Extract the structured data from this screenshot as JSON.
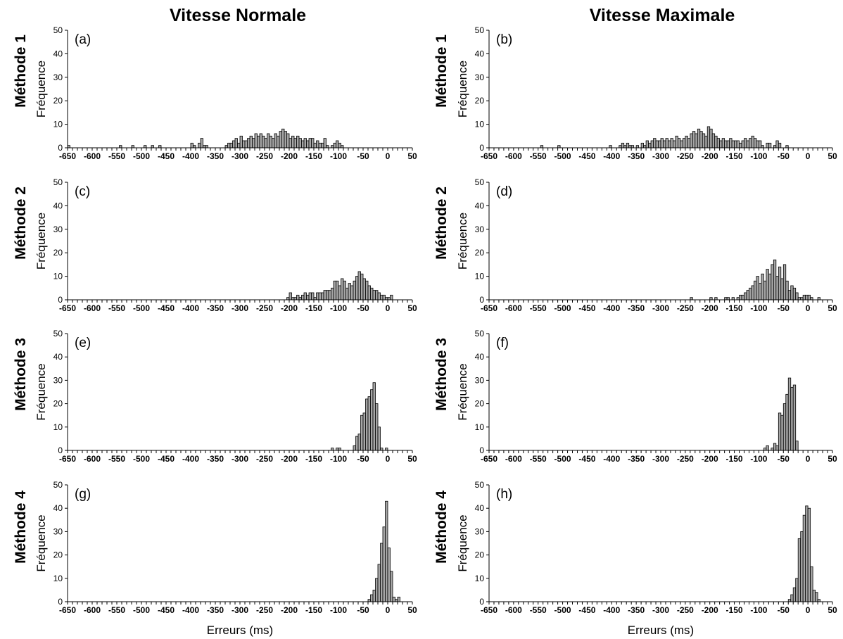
{
  "column_titles": [
    "Vitesse Normale",
    "Vitesse Maximale"
  ],
  "row_titles": [
    "Méthode 1",
    "Méthode 2",
    "Méthode 3",
    "Méthode 4"
  ],
  "chart_data": [
    {
      "type": "bar",
      "panel": "(a)",
      "ylabel": "Fréquence",
      "xlabel": "",
      "xlim": [
        -650,
        50
      ],
      "ylim": [
        0,
        50
      ],
      "bin_width": 5,
      "yticks": [
        0,
        10,
        20,
        30,
        40,
        50
      ],
      "xticks": [
        -650,
        -600,
        -550,
        -500,
        -450,
        -400,
        -350,
        -300,
        -250,
        -200,
        -150,
        -100,
        -50,
        0,
        50
      ],
      "bins": [
        [
          -650,
          1
        ],
        [
          -545,
          1
        ],
        [
          -520,
          1
        ],
        [
          -495,
          1
        ],
        [
          -480,
          1
        ],
        [
          -465,
          1
        ],
        [
          -400,
          2
        ],
        [
          -395,
          1
        ],
        [
          -385,
          2
        ],
        [
          -380,
          4
        ],
        [
          -375,
          1
        ],
        [
          -370,
          1
        ],
        [
          -330,
          1
        ],
        [
          -325,
          2
        ],
        [
          -320,
          2
        ],
        [
          -315,
          3
        ],
        [
          -310,
          4
        ],
        [
          -305,
          2
        ],
        [
          -300,
          5
        ],
        [
          -295,
          3
        ],
        [
          -290,
          3
        ],
        [
          -285,
          4
        ],
        [
          -280,
          5
        ],
        [
          -275,
          4
        ],
        [
          -270,
          6
        ],
        [
          -265,
          5
        ],
        [
          -260,
          6
        ],
        [
          -255,
          5
        ],
        [
          -250,
          4
        ],
        [
          -245,
          6
        ],
        [
          -240,
          5
        ],
        [
          -235,
          4
        ],
        [
          -230,
          6
        ],
        [
          -225,
          5
        ],
        [
          -220,
          7
        ],
        [
          -215,
          8
        ],
        [
          -210,
          7
        ],
        [
          -205,
          6
        ],
        [
          -200,
          4
        ],
        [
          -195,
          5
        ],
        [
          -190,
          4
        ],
        [
          -185,
          5
        ],
        [
          -180,
          4
        ],
        [
          -175,
          3
        ],
        [
          -170,
          4
        ],
        [
          -165,
          3
        ],
        [
          -160,
          4
        ],
        [
          -155,
          4
        ],
        [
          -150,
          2
        ],
        [
          -145,
          3
        ],
        [
          -140,
          2
        ],
        [
          -135,
          2
        ],
        [
          -130,
          4
        ],
        [
          -125,
          1
        ],
        [
          -115,
          1
        ],
        [
          -110,
          2
        ],
        [
          -105,
          3
        ],
        [
          -100,
          2
        ],
        [
          -95,
          1
        ]
      ]
    },
    {
      "type": "bar",
      "panel": "(b)",
      "ylabel": "Fréquence",
      "xlabel": "",
      "xlim": [
        -650,
        50
      ],
      "ylim": [
        0,
        50
      ],
      "bin_width": 5,
      "yticks": [
        0,
        10,
        20,
        30,
        40,
        50
      ],
      "xticks": [
        -650,
        -600,
        -550,
        -500,
        -450,
        -400,
        -350,
        -300,
        -250,
        -200,
        -150,
        -100,
        -50,
        0,
        50
      ],
      "bins": [
        [
          -545,
          1
        ],
        [
          -510,
          1
        ],
        [
          -405,
          1
        ],
        [
          -385,
          1
        ],
        [
          -380,
          2
        ],
        [
          -375,
          1
        ],
        [
          -370,
          2
        ],
        [
          -365,
          1
        ],
        [
          -360,
          1
        ],
        [
          -350,
          1
        ],
        [
          -340,
          2
        ],
        [
          -335,
          1
        ],
        [
          -330,
          3
        ],
        [
          -325,
          2
        ],
        [
          -320,
          3
        ],
        [
          -315,
          4
        ],
        [
          -310,
          3
        ],
        [
          -305,
          3
        ],
        [
          -300,
          4
        ],
        [
          -295,
          3
        ],
        [
          -290,
          4
        ],
        [
          -285,
          3
        ],
        [
          -280,
          4
        ],
        [
          -275,
          3
        ],
        [
          -270,
          5
        ],
        [
          -265,
          4
        ],
        [
          -260,
          3
        ],
        [
          -255,
          4
        ],
        [
          -250,
          5
        ],
        [
          -245,
          4
        ],
        [
          -240,
          6
        ],
        [
          -235,
          7
        ],
        [
          -230,
          6
        ],
        [
          -225,
          8
        ],
        [
          -220,
          7
        ],
        [
          -215,
          6
        ],
        [
          -210,
          5
        ],
        [
          -205,
          9
        ],
        [
          -200,
          8
        ],
        [
          -195,
          6
        ],
        [
          -190,
          5
        ],
        [
          -185,
          4
        ],
        [
          -180,
          3
        ],
        [
          -175,
          4
        ],
        [
          -170,
          3
        ],
        [
          -165,
          3
        ],
        [
          -160,
          4
        ],
        [
          -155,
          3
        ],
        [
          -150,
          3
        ],
        [
          -145,
          3
        ],
        [
          -140,
          2
        ],
        [
          -135,
          3
        ],
        [
          -130,
          4
        ],
        [
          -125,
          3
        ],
        [
          -120,
          4
        ],
        [
          -115,
          5
        ],
        [
          -110,
          4
        ],
        [
          -105,
          3
        ],
        [
          -100,
          3
        ],
        [
          -95,
          1
        ],
        [
          -85,
          2
        ],
        [
          -80,
          2
        ],
        [
          -70,
          1
        ],
        [
          -65,
          3
        ],
        [
          -60,
          2
        ],
        [
          -45,
          1
        ]
      ]
    },
    {
      "type": "bar",
      "panel": "(c)",
      "ylabel": "Fréquence",
      "xlabel": "",
      "xlim": [
        -650,
        50
      ],
      "ylim": [
        0,
        50
      ],
      "bin_width": 5,
      "yticks": [
        0,
        10,
        20,
        30,
        40,
        50
      ],
      "xticks": [
        -650,
        -600,
        -550,
        -500,
        -450,
        -400,
        -350,
        -300,
        -250,
        -200,
        -150,
        -100,
        -50,
        0,
        50
      ],
      "bins": [
        [
          -205,
          1
        ],
        [
          -200,
          3
        ],
        [
          -195,
          1
        ],
        [
          -190,
          1
        ],
        [
          -185,
          2
        ],
        [
          -180,
          1
        ],
        [
          -175,
          2
        ],
        [
          -170,
          3
        ],
        [
          -165,
          2
        ],
        [
          -160,
          3
        ],
        [
          -155,
          3
        ],
        [
          -150,
          1
        ],
        [
          -145,
          3
        ],
        [
          -140,
          3
        ],
        [
          -135,
          3
        ],
        [
          -130,
          4
        ],
        [
          -125,
          4
        ],
        [
          -120,
          4
        ],
        [
          -115,
          5
        ],
        [
          -110,
          8
        ],
        [
          -105,
          8
        ],
        [
          -100,
          6
        ],
        [
          -95,
          9
        ],
        [
          -90,
          8
        ],
        [
          -85,
          5
        ],
        [
          -80,
          7
        ],
        [
          -75,
          6
        ],
        [
          -70,
          8
        ],
        [
          -65,
          10
        ],
        [
          -60,
          12
        ],
        [
          -55,
          11
        ],
        [
          -50,
          9
        ],
        [
          -45,
          8
        ],
        [
          -40,
          6
        ],
        [
          -35,
          5
        ],
        [
          -30,
          4
        ],
        [
          -25,
          4
        ],
        [
          -20,
          3
        ],
        [
          -15,
          2
        ],
        [
          -10,
          2
        ],
        [
          -5,
          1
        ],
        [
          0,
          1
        ],
        [
          5,
          2
        ]
      ]
    },
    {
      "type": "bar",
      "panel": "(d)",
      "ylabel": "Fréquence",
      "xlabel": "",
      "xlim": [
        -650,
        50
      ],
      "ylim": [
        0,
        50
      ],
      "bin_width": 5,
      "yticks": [
        0,
        10,
        20,
        30,
        40,
        50
      ],
      "xticks": [
        -650,
        -600,
        -550,
        -500,
        -450,
        -400,
        -350,
        -300,
        -250,
        -200,
        -150,
        -100,
        -50,
        0,
        50
      ],
      "bins": [
        [
          -240,
          1
        ],
        [
          -200,
          1
        ],
        [
          -190,
          1
        ],
        [
          -170,
          1
        ],
        [
          -165,
          1
        ],
        [
          -155,
          1
        ],
        [
          -145,
          1
        ],
        [
          -140,
          2
        ],
        [
          -135,
          2
        ],
        [
          -130,
          3
        ],
        [
          -125,
          4
        ],
        [
          -120,
          5
        ],
        [
          -115,
          6
        ],
        [
          -110,
          8
        ],
        [
          -105,
          10
        ],
        [
          -100,
          7
        ],
        [
          -95,
          11
        ],
        [
          -90,
          8
        ],
        [
          -85,
          13
        ],
        [
          -80,
          11
        ],
        [
          -75,
          15
        ],
        [
          -70,
          17
        ],
        [
          -65,
          10
        ],
        [
          -60,
          14
        ],
        [
          -55,
          9
        ],
        [
          -50,
          15
        ],
        [
          -45,
          8
        ],
        [
          -40,
          4
        ],
        [
          -35,
          6
        ],
        [
          -30,
          5
        ],
        [
          -25,
          3
        ],
        [
          -20,
          1
        ],
        [
          -15,
          1
        ],
        [
          -10,
          2
        ],
        [
          -5,
          2
        ],
        [
          0,
          2
        ],
        [
          5,
          1
        ],
        [
          20,
          1
        ]
      ]
    },
    {
      "type": "bar",
      "panel": "(e)",
      "ylabel": "Fréquence",
      "xlabel": "",
      "xlim": [
        -650,
        50
      ],
      "ylim": [
        0,
        50
      ],
      "bin_width": 5,
      "yticks": [
        0,
        10,
        20,
        30,
        40,
        50
      ],
      "xticks": [
        -650,
        -600,
        -550,
        -500,
        -450,
        -400,
        -350,
        -300,
        -250,
        -200,
        -150,
        -100,
        -50,
        0,
        50
      ],
      "bins": [
        [
          -115,
          1
        ],
        [
          -105,
          1
        ],
        [
          -100,
          1
        ],
        [
          -70,
          2
        ],
        [
          -65,
          6
        ],
        [
          -60,
          7
        ],
        [
          -55,
          15
        ],
        [
          -50,
          16
        ],
        [
          -45,
          22
        ],
        [
          -40,
          23
        ],
        [
          -35,
          26
        ],
        [
          -30,
          29
        ],
        [
          -25,
          20
        ],
        [
          -20,
          10
        ],
        [
          -15,
          1
        ],
        [
          -5,
          1
        ]
      ]
    },
    {
      "type": "bar",
      "panel": "(f)",
      "ylabel": "Fréquence",
      "xlabel": "",
      "xlim": [
        -650,
        50
      ],
      "ylim": [
        0,
        50
      ],
      "bin_width": 5,
      "yticks": [
        0,
        10,
        20,
        30,
        40,
        50
      ],
      "xticks": [
        -650,
        -600,
        -550,
        -500,
        -450,
        -400,
        -350,
        -300,
        -250,
        -200,
        -150,
        -100,
        -50,
        0,
        50
      ],
      "bins": [
        [
          -90,
          1
        ],
        [
          -85,
          2
        ],
        [
          -75,
          1
        ],
        [
          -70,
          3
        ],
        [
          -65,
          2
        ],
        [
          -60,
          16
        ],
        [
          -55,
          15
        ],
        [
          -50,
          20
        ],
        [
          -45,
          24
        ],
        [
          -40,
          31
        ],
        [
          -35,
          27
        ],
        [
          -30,
          28
        ],
        [
          -25,
          4
        ]
      ]
    },
    {
      "type": "bar",
      "panel": "(g)",
      "ylabel": "Fréquence",
      "xlabel": "Erreurs (ms)",
      "xlim": [
        -650,
        50
      ],
      "ylim": [
        0,
        50
      ],
      "bin_width": 5,
      "yticks": [
        0,
        10,
        20,
        30,
        40,
        50
      ],
      "xticks": [
        -650,
        -600,
        -550,
        -500,
        -450,
        -400,
        -350,
        -300,
        -250,
        -200,
        -150,
        -100,
        -50,
        0,
        50
      ],
      "bins": [
        [
          -40,
          1
        ],
        [
          -35,
          3
        ],
        [
          -30,
          5
        ],
        [
          -25,
          10
        ],
        [
          -20,
          16
        ],
        [
          -15,
          25
        ],
        [
          -10,
          32
        ],
        [
          -5,
          43
        ],
        [
          0,
          23
        ],
        [
          5,
          13
        ],
        [
          10,
          2
        ],
        [
          15,
          1
        ],
        [
          20,
          2
        ]
      ]
    },
    {
      "type": "bar",
      "panel": "(h)",
      "ylabel": "Fréquence",
      "xlabel": "Erreurs (ms)",
      "xlim": [
        -650,
        50
      ],
      "ylim": [
        0,
        50
      ],
      "bin_width": 5,
      "yticks": [
        0,
        10,
        20,
        30,
        40,
        50
      ],
      "xticks": [
        -650,
        -600,
        -550,
        -500,
        -450,
        -400,
        -350,
        -300,
        -250,
        -200,
        -150,
        -100,
        -50,
        0,
        50
      ],
      "bins": [
        [
          -40,
          1
        ],
        [
          -35,
          3
        ],
        [
          -30,
          6
        ],
        [
          -25,
          10
        ],
        [
          -20,
          27
        ],
        [
          -15,
          30
        ],
        [
          -10,
          37
        ],
        [
          -5,
          41
        ],
        [
          0,
          40
        ],
        [
          5,
          15
        ],
        [
          10,
          5
        ],
        [
          15,
          4
        ],
        [
          20,
          1
        ]
      ]
    }
  ]
}
